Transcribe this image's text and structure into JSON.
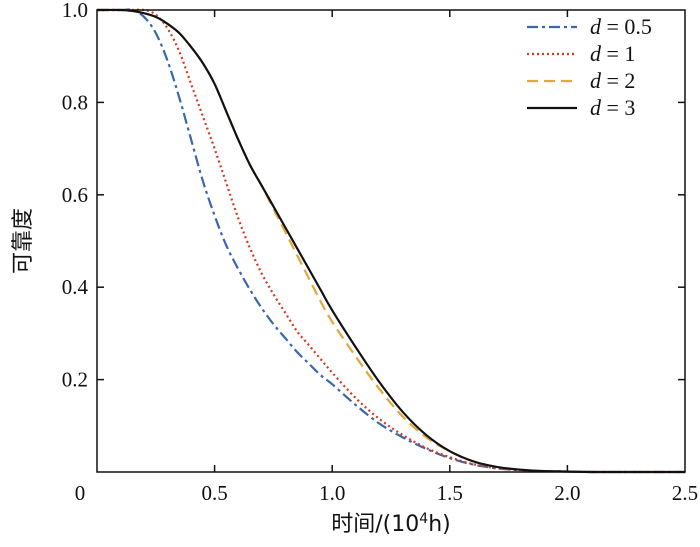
{
  "chart_data": {
    "type": "line",
    "xlabel": "时间/(10",
    "xlabel_sup": "4",
    "xlabel_tail": "h)",
    "ylabel": "可靠度",
    "xlim": [
      0,
      2.5
    ],
    "ylim": [
      0,
      1.0
    ],
    "x_ticks": [
      0,
      0.5,
      1.0,
      1.5,
      2.0,
      2.5
    ],
    "x_tick_labels": [
      "0",
      "0.5",
      "1.0",
      "1.5",
      "2.0",
      "2.5"
    ],
    "y_ticks": [
      0.2,
      0.4,
      0.6,
      0.8,
      1.0
    ],
    "y_tick_labels": [
      "0.2",
      "0.4",
      "0.6",
      "0.8",
      "1.0"
    ],
    "grid": false,
    "legend_position": "top-right",
    "x": [
      0,
      0.1,
      0.15,
      0.2,
      0.25,
      0.3,
      0.35,
      0.4,
      0.45,
      0.5,
      0.55,
      0.6,
      0.65,
      0.7,
      0.75,
      0.8,
      0.85,
      0.9,
      0.95,
      1.0,
      1.1,
      1.2,
      1.3,
      1.4,
      1.5,
      1.6,
      1.7,
      1.8,
      1.9,
      2.0,
      2.1,
      2.2,
      2.3,
      2.4,
      2.5
    ],
    "series": [
      {
        "name_italic": "d",
        "name_rest": " = 0.5",
        "color": "#3a66b0",
        "dash": "11,4,3,4",
        "values": [
          1.0,
          1.0,
          1.0,
          0.985,
          0.95,
          0.89,
          0.81,
          0.72,
          0.63,
          0.555,
          0.49,
          0.44,
          0.395,
          0.355,
          0.32,
          0.29,
          0.26,
          0.235,
          0.21,
          0.19,
          0.145,
          0.105,
          0.075,
          0.05,
          0.03,
          0.016,
          0.008,
          0.004,
          0.002,
          0.001,
          0.0,
          0.0,
          0.0,
          0.0,
          0.0
        ]
      },
      {
        "name_italic": "d",
        "name_rest": " = 1",
        "color": "#d13a1e",
        "dash": "2,3",
        "values": [
          1.0,
          1.0,
          1.0,
          1.0,
          0.99,
          0.96,
          0.91,
          0.84,
          0.77,
          0.7,
          0.625,
          0.55,
          0.485,
          0.43,
          0.385,
          0.345,
          0.305,
          0.275,
          0.245,
          0.215,
          0.16,
          0.115,
          0.08,
          0.052,
          0.032,
          0.017,
          0.008,
          0.004,
          0.002,
          0.001,
          0.0,
          0.0,
          0.0,
          0.0,
          0.0
        ]
      },
      {
        "name_italic": "d",
        "name_rest": " = 2",
        "color": "#e3a838",
        "dash": "11,6",
        "values": [
          1.0,
          1.0,
          0.998,
          0.993,
          0.985,
          0.97,
          0.95,
          0.92,
          0.885,
          0.84,
          0.78,
          0.72,
          0.665,
          0.62,
          0.57,
          0.52,
          0.47,
          0.42,
          0.37,
          0.325,
          0.25,
          0.18,
          0.12,
          0.075,
          0.045,
          0.023,
          0.011,
          0.005,
          0.002,
          0.001,
          0.0,
          0.0,
          0.0,
          0.0,
          0.0
        ]
      },
      {
        "name_italic": "d",
        "name_rest": " = 3",
        "color": "#111111",
        "dash": "",
        "values": [
          1.0,
          1.0,
          0.998,
          0.993,
          0.985,
          0.97,
          0.95,
          0.92,
          0.885,
          0.84,
          0.78,
          0.72,
          0.665,
          0.62,
          0.575,
          0.53,
          0.485,
          0.44,
          0.395,
          0.35,
          0.27,
          0.195,
          0.13,
          0.08,
          0.045,
          0.023,
          0.011,
          0.005,
          0.002,
          0.001,
          0.0,
          0.0,
          0.0,
          0.0,
          0.0
        ]
      }
    ]
  }
}
